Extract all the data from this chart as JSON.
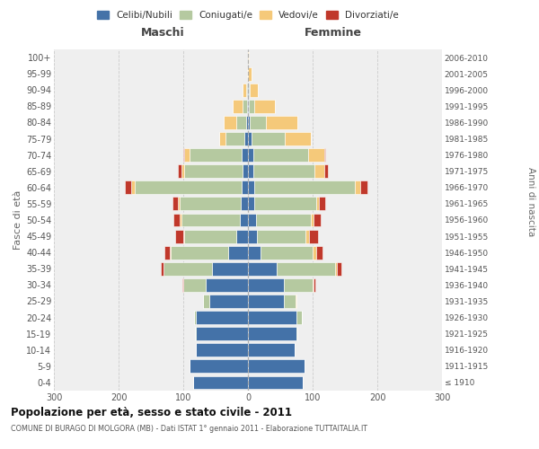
{
  "age_groups": [
    "0-4",
    "5-9",
    "10-14",
    "15-19",
    "20-24",
    "25-29",
    "30-34",
    "35-39",
    "40-44",
    "45-49",
    "50-54",
    "55-59",
    "60-64",
    "65-69",
    "70-74",
    "75-79",
    "80-84",
    "85-89",
    "90-94",
    "95-99",
    "100+"
  ],
  "birth_years": [
    "2006-2010",
    "2001-2005",
    "1996-2000",
    "1991-1995",
    "1986-1990",
    "1981-1985",
    "1976-1980",
    "1971-1975",
    "1966-1970",
    "1961-1965",
    "1956-1960",
    "1951-1955",
    "1946-1950",
    "1941-1945",
    "1936-1940",
    "1931-1935",
    "1926-1930",
    "1921-1925",
    "1916-1920",
    "1911-1915",
    "≤ 1910"
  ],
  "maschi": {
    "celibi": [
      85,
      90,
      80,
      80,
      80,
      60,
      65,
      55,
      30,
      18,
      13,
      11,
      10,
      8,
      10,
      5,
      3,
      1,
      2,
      0,
      0
    ],
    "coniugati": [
      0,
      0,
      0,
      2,
      3,
      10,
      35,
      75,
      90,
      80,
      90,
      95,
      165,
      90,
      80,
      30,
      15,
      8,
      1,
      0,
      0
    ],
    "vedovi": [
      0,
      0,
      0,
      0,
      0,
      0,
      0,
      0,
      1,
      2,
      2,
      3,
      5,
      5,
      8,
      10,
      20,
      15,
      5,
      2,
      0
    ],
    "divorziati": [
      0,
      0,
      0,
      0,
      0,
      0,
      2,
      5,
      8,
      12,
      10,
      8,
      10,
      5,
      2,
      0,
      0,
      0,
      0,
      0,
      0
    ]
  },
  "femmine": {
    "nubili": [
      85,
      88,
      72,
      75,
      75,
      55,
      55,
      45,
      20,
      14,
      12,
      10,
      10,
      8,
      8,
      5,
      3,
      2,
      1,
      0,
      0
    ],
    "coniugate": [
      0,
      0,
      0,
      2,
      8,
      18,
      45,
      90,
      80,
      75,
      85,
      95,
      155,
      95,
      85,
      52,
      25,
      8,
      2,
      0,
      0
    ],
    "vedove": [
      0,
      0,
      0,
      0,
      0,
      2,
      2,
      2,
      5,
      5,
      5,
      5,
      8,
      15,
      25,
      40,
      48,
      32,
      12,
      5,
      1
    ],
    "divorziate": [
      0,
      0,
      0,
      0,
      0,
      0,
      2,
      8,
      10,
      14,
      10,
      10,
      12,
      5,
      2,
      0,
      0,
      0,
      0,
      0,
      0
    ]
  },
  "colors": {
    "celibi": "#4472a8",
    "coniugati": "#b5c9a0",
    "vedovi": "#f5c97a",
    "divorziati": "#c0382b"
  },
  "title": "Popolazione per età, sesso e stato civile - 2011",
  "subtitle": "COMUNE DI BURAGO DI MOLGORA (MB) - Dati ISTAT 1° gennaio 2011 - Elaborazione TUTTAITALIA.IT",
  "maschi_label": "Maschi",
  "femmine_label": "Femmine",
  "ylabel_left": "Fasce di età",
  "ylabel_right": "Anni di nascita",
  "xlim": 300,
  "legend_labels": [
    "Celibi/Nubili",
    "Coniugati/e",
    "Vedovi/e",
    "Divorziati/e"
  ],
  "background_color": "#ffffff",
  "plot_bg_color": "#efefef",
  "grid_color": "#c8c8c8"
}
